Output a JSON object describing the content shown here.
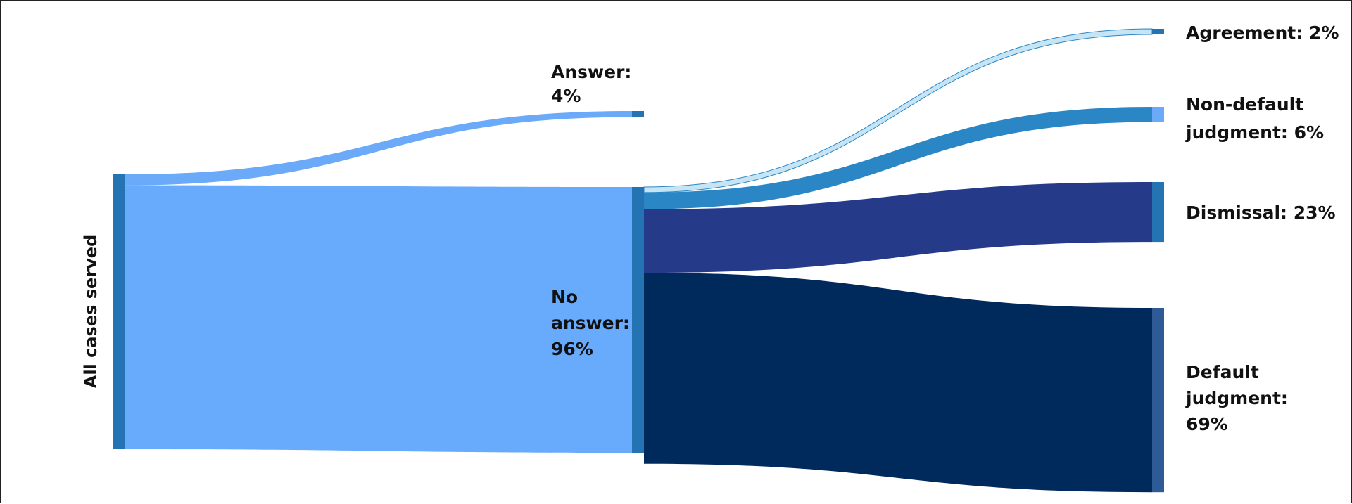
{
  "chart_data": {
    "type": "sankey",
    "title": "",
    "nodes": [
      {
        "id": "all",
        "label": "All cases served"
      },
      {
        "id": "answer",
        "label_lines": [
          "Answer:",
          "4%"
        ],
        "percent": 4
      },
      {
        "id": "no_answer",
        "label_lines": [
          "No",
          "answer:",
          "96%"
        ],
        "percent": 96
      },
      {
        "id": "agreement",
        "label_lines": [
          "Agreement: 2%"
        ],
        "percent": 2
      },
      {
        "id": "non_default",
        "label_lines": [
          "Non-default",
          "judgment: 6%"
        ],
        "percent": 6
      },
      {
        "id": "dismissal",
        "label_lines": [
          "Dismissal: 23%"
        ],
        "percent": 23
      },
      {
        "id": "default",
        "label_lines": [
          "Default",
          "judgment:",
          "69%"
        ],
        "percent": 69
      }
    ],
    "links": [
      {
        "source": "all",
        "target": "answer",
        "value": 4
      },
      {
        "source": "all",
        "target": "no_answer",
        "value": 96
      },
      {
        "source": "no_answer",
        "target": "agreement",
        "value": 2
      },
      {
        "source": "no_answer",
        "target": "non_default",
        "value": 6
      },
      {
        "source": "no_answer",
        "target": "dismissal",
        "value": 23
      },
      {
        "source": "no_answer",
        "target": "default",
        "value": 69
      }
    ],
    "colors": {
      "answer_link": "#6aaaf8",
      "no_answer_link": "#68aafb",
      "agreement_link": "#c5e5f5",
      "non_default_link": "#2b86c5",
      "dismissal_link": "#263a8a",
      "default_link": "#00295c",
      "node_bar": "#2474b3",
      "agreement_node": "#2474b3",
      "non_default_node": "#6aaaf8",
      "dismissal_node": "#2474b3",
      "default_node": "#2e5a95"
    }
  }
}
